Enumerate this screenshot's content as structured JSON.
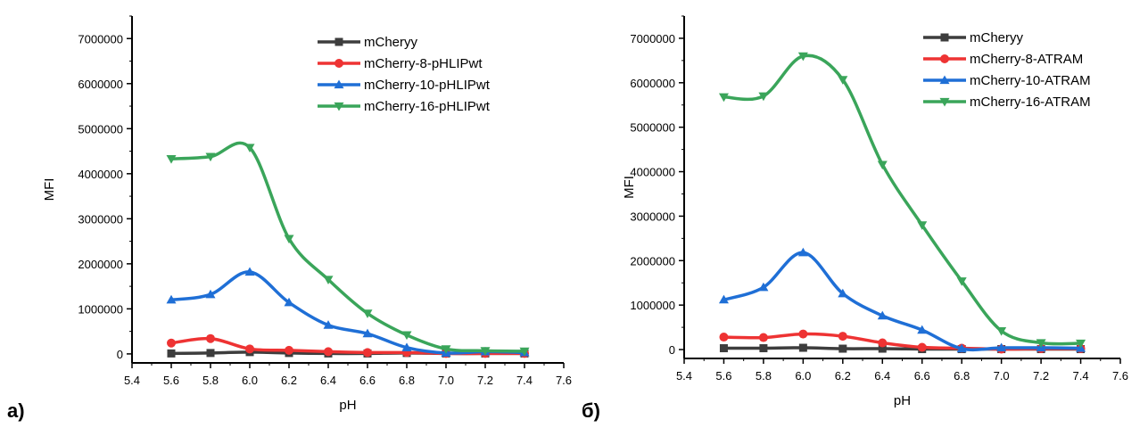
{
  "chart_data": [
    {
      "type": "line",
      "panel_label": "а)",
      "xlabel": "pH",
      "ylabel": "MFI",
      "xlim": [
        5.4,
        7.6
      ],
      "ylim": [
        -200000,
        7500000
      ],
      "x_ticks": [
        "5.4",
        "5.6",
        "5.8",
        "6.0",
        "6.2",
        "6.4",
        "6.6",
        "6.8",
        "7.0",
        "7.2",
        "7.4",
        "7.6"
      ],
      "y_ticks": [
        "0",
        "1000000",
        "2000000",
        "3000000",
        "4000000",
        "5000000",
        "6000000",
        "7000000"
      ],
      "legend_position": "top-right",
      "grid": false,
      "x": [
        5.6,
        5.8,
        6.0,
        6.2,
        6.4,
        6.6,
        6.8,
        7.0,
        7.2,
        7.4
      ],
      "series": [
        {
          "name": "mCheryy",
          "color": "#3d3d3d",
          "marker": "square",
          "values": [
            10000,
            20000,
            40000,
            20000,
            10000,
            10000,
            20000,
            10000,
            10000,
            10000
          ]
        },
        {
          "name": "mCherry-8-pHLIPwt",
          "color": "#ee3333",
          "marker": "circle",
          "values": [
            240000,
            340000,
            110000,
            80000,
            50000,
            30000,
            30000,
            10000,
            10000,
            10000
          ]
        },
        {
          "name": "mCherry-10-pHLIPwt",
          "color": "#1f6fd6",
          "marker": "triangle-up",
          "values": [
            1200000,
            1320000,
            1820000,
            1140000,
            640000,
            450000,
            140000,
            20000,
            50000,
            30000
          ]
        },
        {
          "name": "mCherry-16-pHLIPwt",
          "color": "#3aa55a",
          "marker": "triangle-down",
          "values": [
            4330000,
            4380000,
            4580000,
            2560000,
            1650000,
            900000,
            420000,
            110000,
            70000,
            60000
          ]
        }
      ]
    },
    {
      "type": "line",
      "panel_label": "б)",
      "xlabel": "pH",
      "ylabel": "MFI",
      "xlim": [
        5.4,
        7.6
      ],
      "ylim": [
        -200000,
        7500000
      ],
      "x_ticks": [
        "5.4",
        "5.6",
        "5.8",
        "6.0",
        "6.2",
        "6.4",
        "6.6",
        "6.8",
        "7.0",
        "7.2",
        "7.4",
        "7.6"
      ],
      "y_ticks": [
        "0",
        "1000000",
        "2000000",
        "3000000",
        "4000000",
        "5000000",
        "6000000",
        "7000000"
      ],
      "legend_position": "top-right",
      "grid": false,
      "x": [
        5.6,
        5.8,
        6.0,
        6.2,
        6.4,
        6.6,
        6.8,
        7.0,
        7.2,
        7.4
      ],
      "series": [
        {
          "name": "mCheryy",
          "color": "#3d3d3d",
          "marker": "square",
          "values": [
            30000,
            30000,
            40000,
            20000,
            20000,
            10000,
            10000,
            10000,
            10000,
            10000
          ]
        },
        {
          "name": "mCherry-8-ATRAM",
          "color": "#ee3333",
          "marker": "circle",
          "values": [
            280000,
            270000,
            350000,
            300000,
            150000,
            50000,
            30000,
            10000,
            20000,
            20000
          ]
        },
        {
          "name": "mCherry-10-ATRAM",
          "color": "#1f6fd6",
          "marker": "triangle-up",
          "values": [
            1120000,
            1400000,
            2180000,
            1260000,
            760000,
            440000,
            20000,
            40000,
            40000,
            30000
          ]
        },
        {
          "name": "mCherry-16-ATRAM",
          "color": "#3aa55a",
          "marker": "triangle-down",
          "values": [
            5680000,
            5700000,
            6600000,
            6070000,
            4160000,
            2800000,
            1540000,
            420000,
            150000,
            140000
          ]
        }
      ]
    }
  ]
}
